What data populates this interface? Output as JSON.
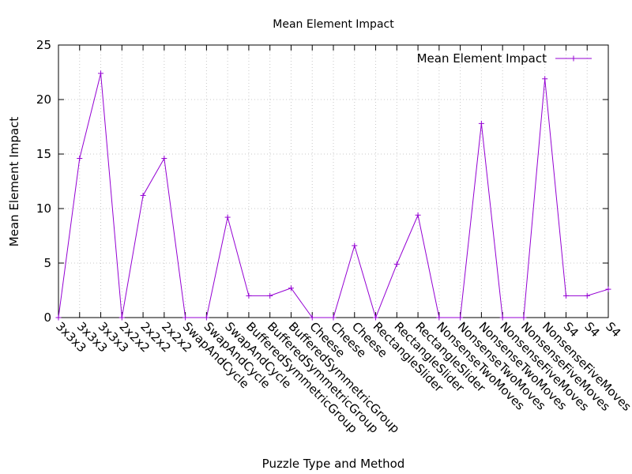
{
  "chart_data": {
    "type": "line",
    "title": "Mean Element Impact",
    "xlabel": "Puzzle Type and Method",
    "ylabel": "Mean Element Impact",
    "ylim": [
      0,
      25
    ],
    "yticks": [
      0,
      5,
      10,
      15,
      20,
      25
    ],
    "grid": true,
    "legend_position": "top-right",
    "categories": [
      "3x3x3",
      "3x3x3",
      "3x3x3",
      "2x2x2",
      "2x2x2",
      "2x2x2",
      "SwapAndCycle",
      "SwapAndCycle",
      "SwapAndCycle",
      "BufferedSymmetricGroup",
      "BufferedSymmetricGroup",
      "BufferedSymmetricGroup",
      "Cheese",
      "Cheese",
      "Cheese",
      "RectangleSlider",
      "RectangleSlider",
      "RectangleSlider",
      "NonsenseTwoMoves",
      "NonsenseTwoMoves",
      "NonsenseTwoMoves",
      "NonsenseFiveMoves",
      "NonsenseFiveMoves",
      "NonsenseFiveMoves",
      "S4",
      "S4",
      "S4"
    ],
    "series": [
      {
        "name": "Mean Element Impact",
        "color": "#9400d3",
        "values": [
          0,
          14.6,
          22.4,
          0,
          11.2,
          14.6,
          0,
          0,
          9.2,
          2,
          2,
          2.7,
          0,
          0,
          6.6,
          0,
          4.9,
          9.4,
          0,
          0,
          17.8,
          0,
          0,
          21.9,
          2,
          2,
          2.6
        ]
      }
    ]
  }
}
